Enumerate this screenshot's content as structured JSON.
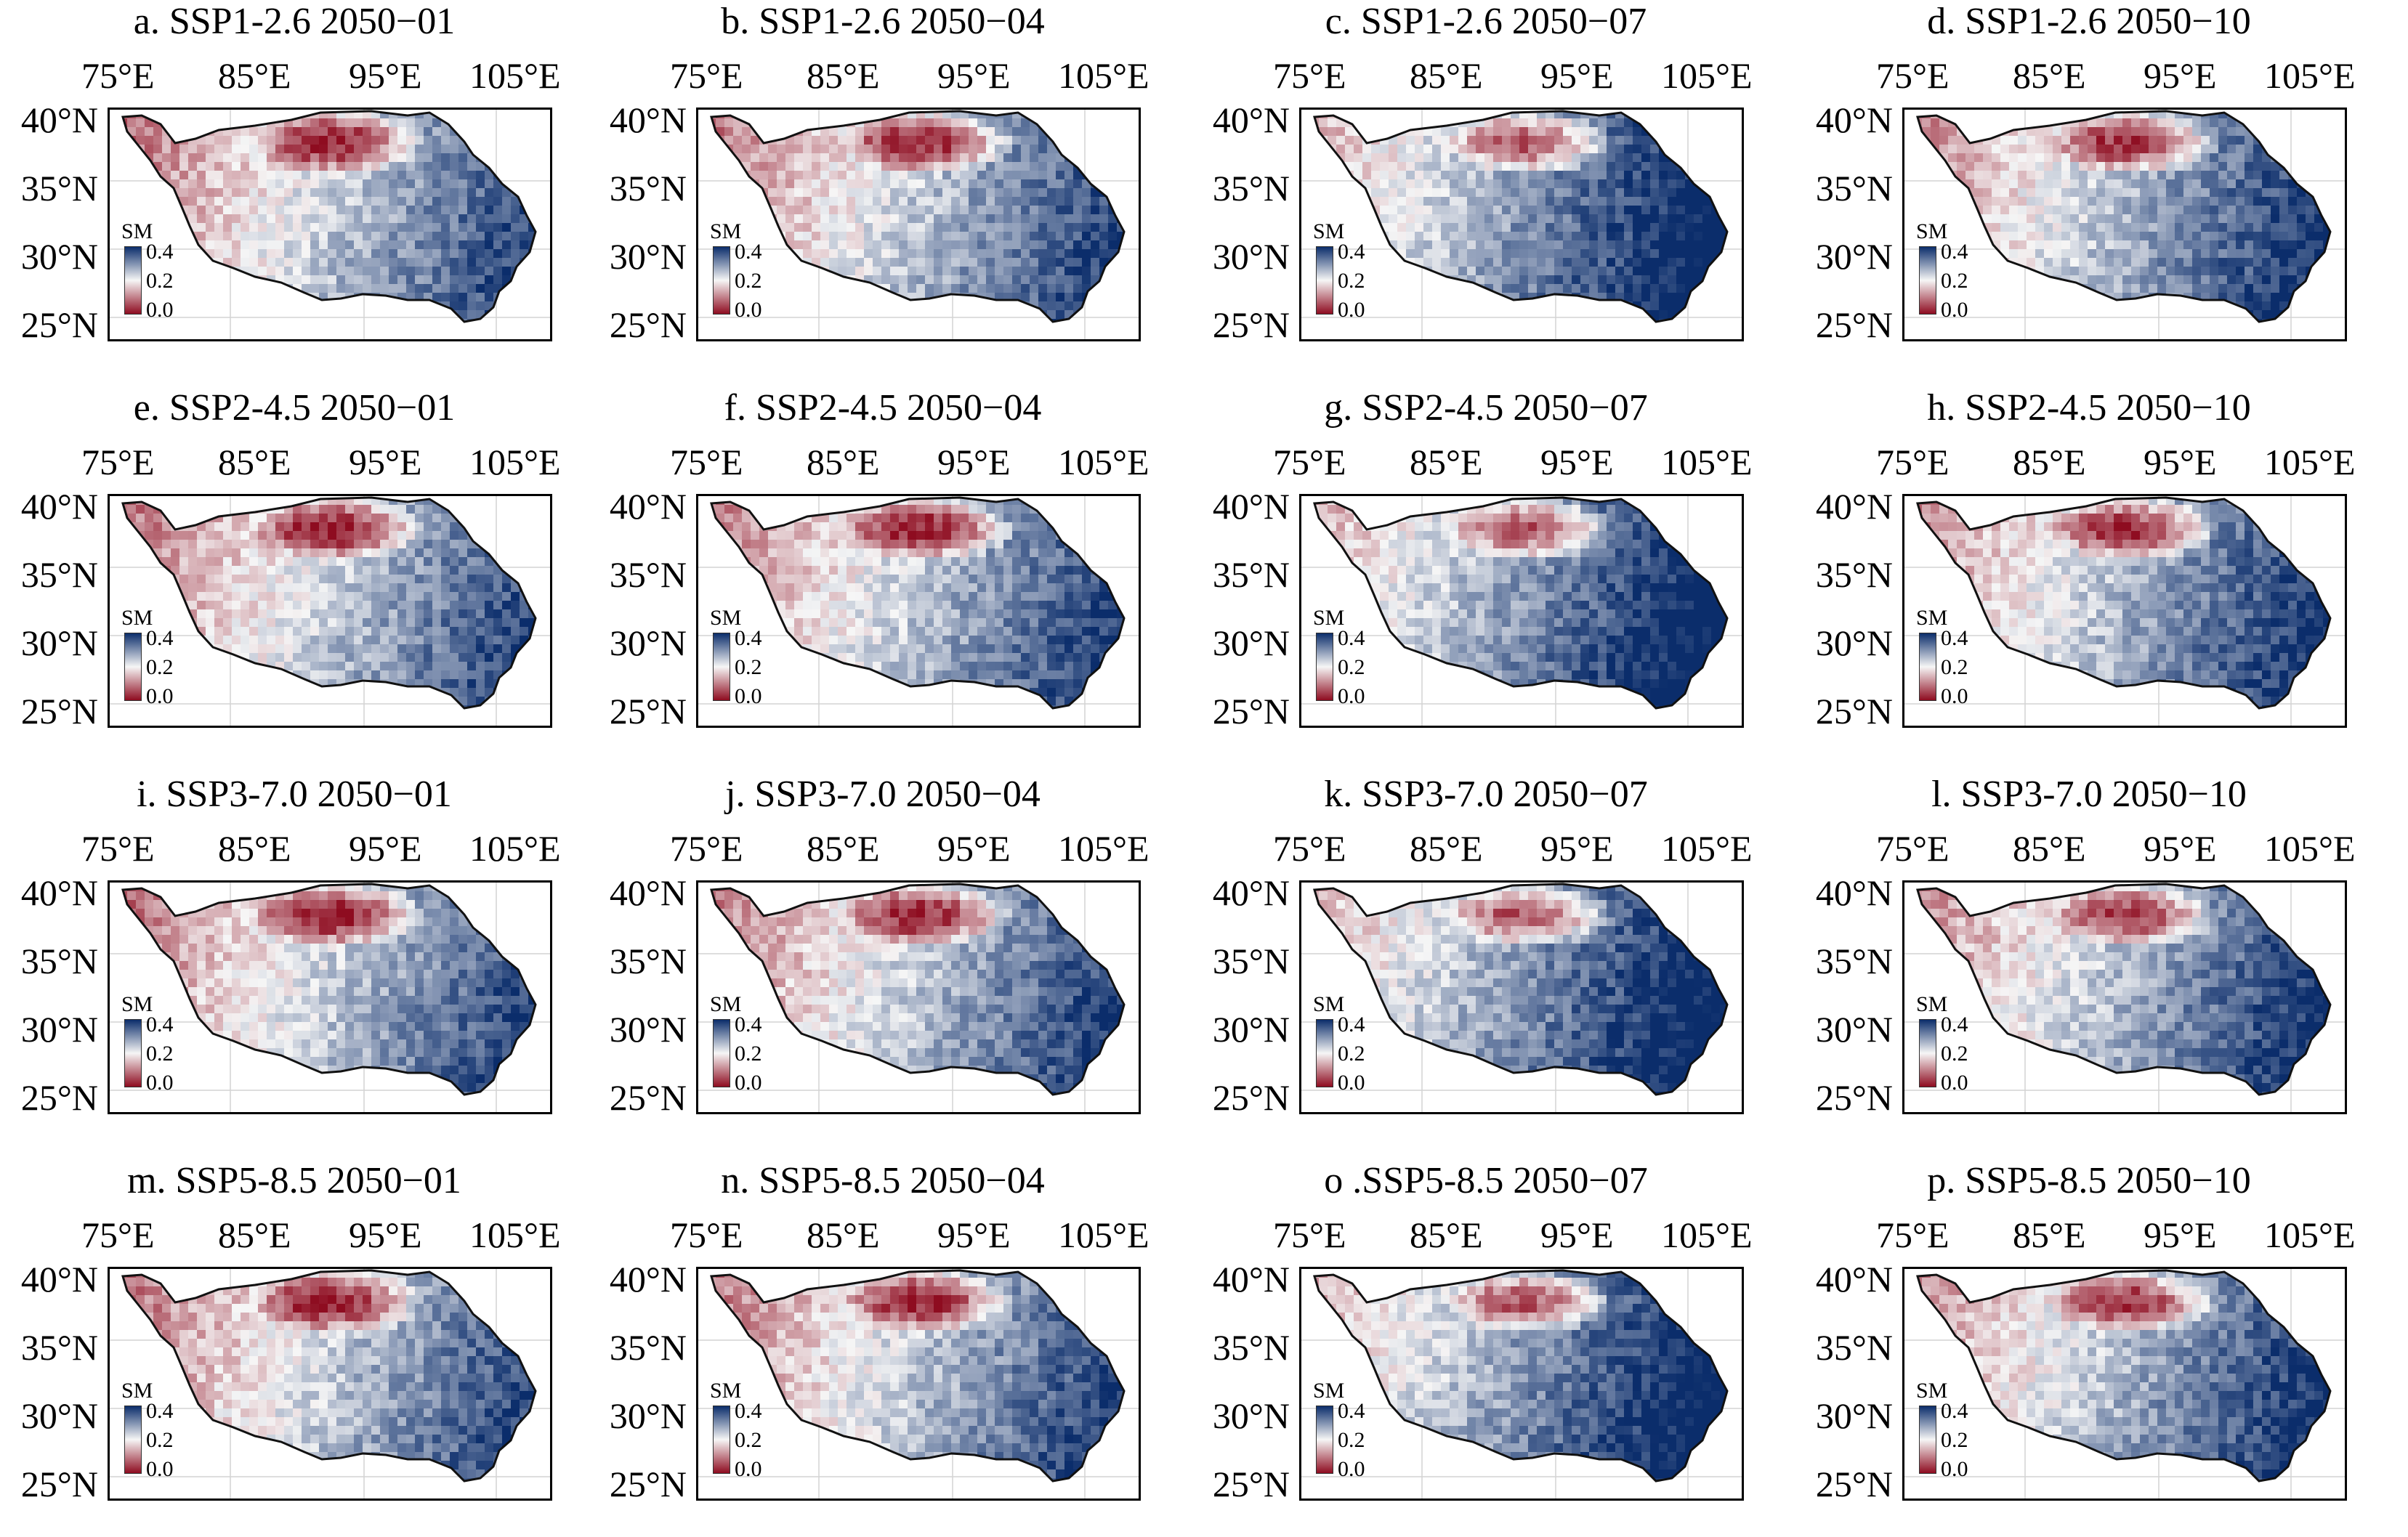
{
  "legend": {
    "label": "SM",
    "ticks": [
      "0.4",
      "0.2",
      "0.0"
    ]
  },
  "axes": {
    "lon_ticks": [
      "75°E",
      "85°E",
      "95°E",
      "105°E"
    ],
    "lat_ticks": [
      "40°N",
      "35°N",
      "30°N",
      "25°N"
    ]
  },
  "colors": {
    "wet": "#0b2d6b",
    "mid": "#f6f6f6",
    "dry": "#8e0c20",
    "outline": "#111111"
  },
  "panels": [
    {
      "title": "a. SSP1-2.6 2050−01",
      "scenario": "SSP1-2.6",
      "month": "2050−01"
    },
    {
      "title": "b. SSP1-2.6 2050−04",
      "scenario": "SSP1-2.6",
      "month": "2050−04"
    },
    {
      "title": "c. SSP1-2.6 2050−07",
      "scenario": "SSP1-2.6",
      "month": "2050−07"
    },
    {
      "title": "d. SSP1-2.6 2050−10",
      "scenario": "SSP1-2.6",
      "month": "2050−10"
    },
    {
      "title": "e. SSP2-4.5 2050−01",
      "scenario": "SSP2-4.5",
      "month": "2050−01"
    },
    {
      "title": "f. SSP2-4.5 2050−04",
      "scenario": "SSP2-4.5",
      "month": "2050−04"
    },
    {
      "title": "g. SSP2-4.5 2050−07",
      "scenario": "SSP2-4.5",
      "month": "2050−07"
    },
    {
      "title": "h. SSP2-4.5 2050−10",
      "scenario": "SSP2-4.5",
      "month": "2050−10"
    },
    {
      "title": "i. SSP3-7.0 2050−01",
      "scenario": "SSP3-7.0",
      "month": "2050−01"
    },
    {
      "title": "j. SSP3-7.0 2050−04",
      "scenario": "SSP3-7.0",
      "month": "2050−04"
    },
    {
      "title": "k. SSP3-7.0 2050−07",
      "scenario": "SSP3-7.0",
      "month": "2050−07"
    },
    {
      "title": "l. SSP3-7.0 2050−10",
      "scenario": "SSP3-7.0",
      "month": "2050−10"
    },
    {
      "title": "m. SSP5-8.5 2050−01",
      "scenario": "SSP5-8.5",
      "month": "2050−01"
    },
    {
      "title": "n. SSP5-8.5 2050−04",
      "scenario": "SSP5-8.5",
      "month": "2050−04"
    },
    {
      "title": "o .SSP5-8.5 2050−07",
      "scenario": "SSP5-8.5",
      "month": "2050−07"
    },
    {
      "title": "p. SSP5-8.5 2050−10",
      "scenario": "SSP5-8.5",
      "month": "2050−10"
    }
  ]
}
